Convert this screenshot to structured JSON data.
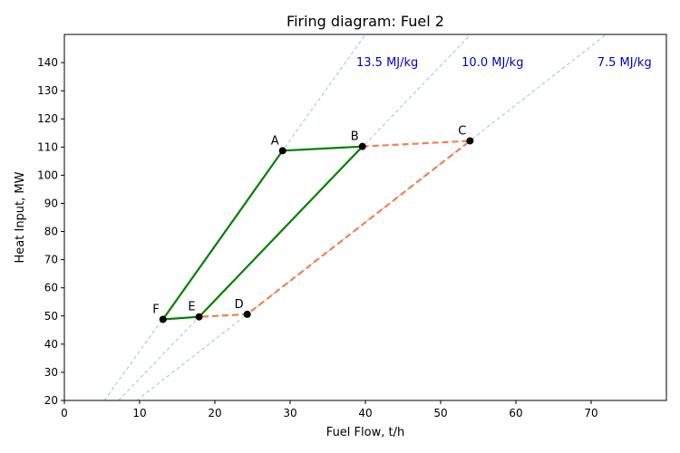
{
  "chart_data": {
    "type": "line",
    "title": "Firing diagram: Fuel 2",
    "xlabel": "Fuel Flow, t/h",
    "ylabel": "Heat Input, MW",
    "xlim": [
      0,
      80
    ],
    "ylim": [
      20,
      150
    ],
    "x_ticks": [
      0,
      10,
      20,
      30,
      40,
      50,
      60,
      70
    ],
    "y_ticks": [
      20,
      30,
      40,
      50,
      60,
      70,
      80,
      90,
      100,
      110,
      120,
      130,
      140
    ],
    "grid": false,
    "points": [
      {
        "label": "A",
        "x": 29.0,
        "y": 108.7
      },
      {
        "label": "B",
        "x": 39.6,
        "y": 110.2
      },
      {
        "label": "C",
        "x": 53.9,
        "y": 112.2
      },
      {
        "label": "D",
        "x": 24.3,
        "y": 50.6
      },
      {
        "label": "E",
        "x": 17.9,
        "y": 49.7
      },
      {
        "label": "F",
        "x": 13.1,
        "y": 48.8
      }
    ],
    "series": [
      {
        "style": "solid",
        "color": "#008000",
        "points": [
          "A",
          "B",
          "E",
          "F",
          "A"
        ]
      },
      {
        "style": "dashed",
        "color": "#f08050",
        "points": [
          "B",
          "C",
          "D",
          "E"
        ]
      }
    ],
    "reference_lines": [
      {
        "label": "13.5 MJ/kg",
        "slope_mw_per_th": 3.75,
        "color": "#a0c0e8",
        "label_color": "#0000cc"
      },
      {
        "label": "10.0 MJ/kg",
        "slope_mw_per_th": 2.778,
        "color": "#a0c0e8",
        "label_color": "#0000cc"
      },
      {
        "label": "7.5 MJ/kg",
        "slope_mw_per_th": 2.083,
        "color": "#a0c0e8",
        "label_color": "#0000cc"
      }
    ]
  }
}
